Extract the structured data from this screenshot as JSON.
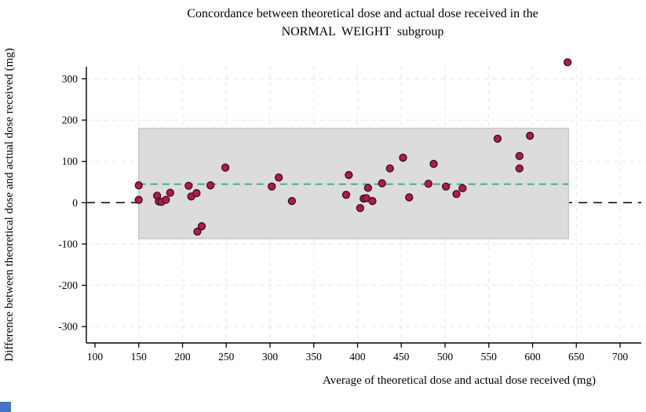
{
  "title": {
    "line1": "Concordance between theoretical dose and actual dose received in the",
    "line2": "NORMAL  WEIGHT  subgroup"
  },
  "chart_data": {
    "type": "scatter",
    "title": "Concordance between theoretical dose and actual dose received in the NORMAL WEIGHT subgroup",
    "xlabel": "Average of theoretical dose and actual dose received (mg)",
    "ylabel": "Difference between theoretical dose and actual dose received (mg)",
    "xlim": [
      100,
      700
    ],
    "ylim": [
      -300,
      300
    ],
    "xticks": [
      100,
      150,
      200,
      250,
      300,
      350,
      400,
      450,
      500,
      550,
      600,
      650,
      700
    ],
    "yticks": [
      -300,
      -200,
      -100,
      0,
      100,
      200,
      300
    ],
    "grid": "light dashed, vertical every 50, horizontal every 100",
    "legend": "none",
    "points": [
      [
        150,
        42
      ],
      [
        150,
        7
      ],
      [
        171,
        17
      ],
      [
        173,
        3
      ],
      [
        176,
        2
      ],
      [
        181,
        7
      ],
      [
        186,
        24
      ],
      [
        207,
        41
      ],
      [
        210,
        15
      ],
      [
        216,
        23
      ],
      [
        217,
        -70
      ],
      [
        222,
        -57
      ],
      [
        232,
        42
      ],
      [
        249,
        85
      ],
      [
        302,
        39
      ],
      [
        310,
        61
      ],
      [
        325,
        4
      ],
      [
        387,
        19
      ],
      [
        390,
        67
      ],
      [
        403,
        -13
      ],
      [
        407,
        10
      ],
      [
        410,
        11
      ],
      [
        412,
        36
      ],
      [
        417,
        4
      ],
      [
        428,
        47
      ],
      [
        437,
        83
      ],
      [
        452,
        109
      ],
      [
        459,
        13
      ],
      [
        481,
        46
      ],
      [
        487,
        94
      ],
      [
        501,
        39
      ],
      [
        513,
        21
      ],
      [
        520,
        35
      ],
      [
        560,
        155
      ],
      [
        585,
        113
      ],
      [
        585,
        83
      ],
      [
        597,
        162
      ],
      [
        640,
        340
      ]
    ],
    "mean_difference_line": 45,
    "upper_agreement_limit": 180,
    "lower_agreement_limit": -87,
    "agreement_band_x_range": [
      150,
      641
    ],
    "zero_reference_line": 0
  },
  "colors": {
    "point_fill": "#c60f4f",
    "point_stroke": "#1c1c1c",
    "band_fill": "#dcdcdc",
    "band_stroke": "#c9c9c9",
    "mean_line": "#00b26b",
    "zero_line": "#000000",
    "grid": "#e8e8e8",
    "axis": "#000000",
    "corner_artifact": "#4472c4"
  }
}
